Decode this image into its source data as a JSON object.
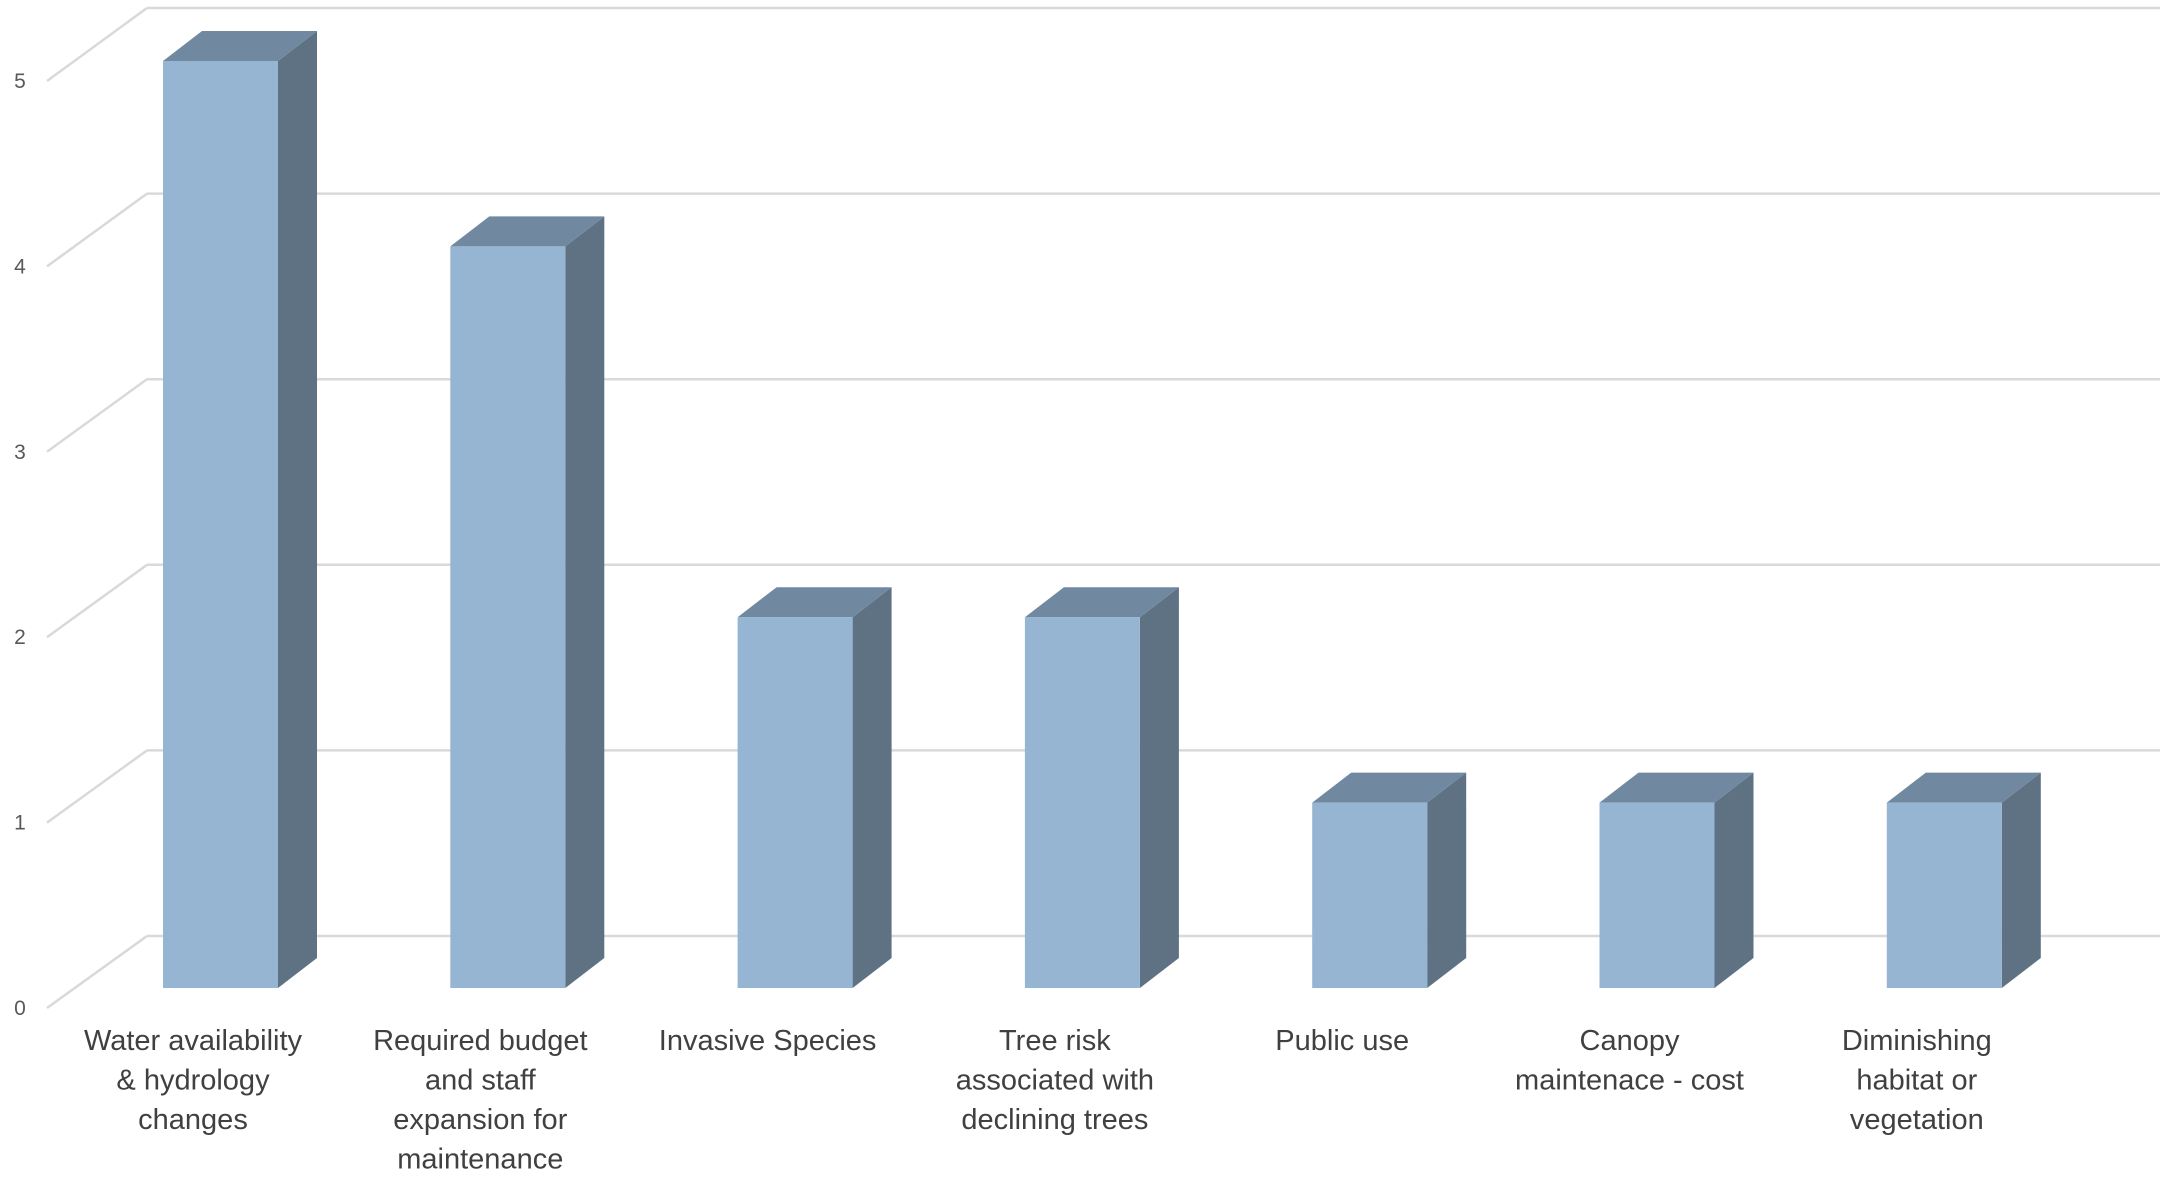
{
  "chart_data": {
    "type": "bar",
    "style": "3d-column",
    "title": "",
    "xlabel": "",
    "ylabel": "",
    "categories": [
      "Water availability & hydrology changes",
      "Required budget and staff expansion for maintenance",
      "Invasive Species",
      "Tree risk associated with declining trees",
      "Public use",
      "Canopy maintenace - cost",
      "Diminishing habitat or vegetation"
    ],
    "category_lines": [
      [
        "Water availability",
        "& hydrology",
        "changes"
      ],
      [
        "Required budget",
        "and staff",
        "expansion for",
        "maintenance"
      ],
      [
        "Invasive Species"
      ],
      [
        "Tree risk",
        "associated with",
        "declining trees"
      ],
      [
        "Public use"
      ],
      [
        "Canopy",
        "maintenace - cost"
      ],
      [
        "Diminishing",
        "habitat or",
        "vegetation"
      ]
    ],
    "values": [
      5,
      4,
      2,
      2,
      1,
      1,
      1
    ],
    "ylim": [
      0,
      5
    ],
    "yticks": [
      "0",
      "1",
      "2",
      "3",
      "4",
      "5"
    ],
    "grid": true,
    "legend": "none",
    "colors": {
      "front": "#95b5d2",
      "side": "#5e7284",
      "top": "#7189a0",
      "grid": "#d9d9d9"
    }
  }
}
